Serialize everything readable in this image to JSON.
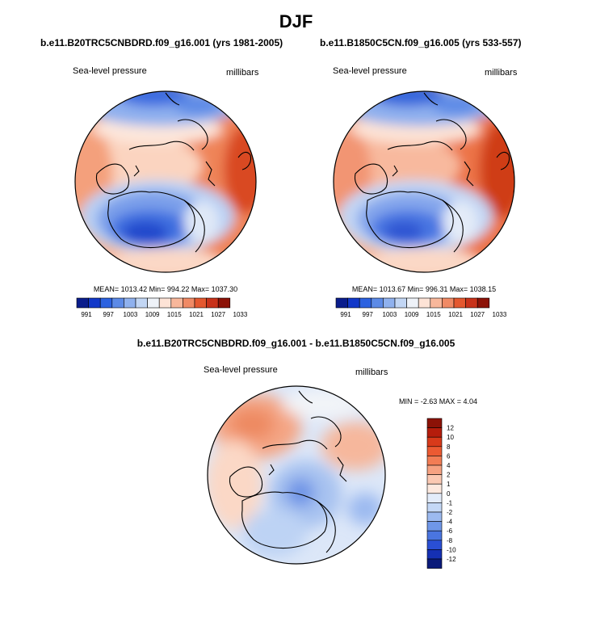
{
  "figure": {
    "title": "DJF"
  },
  "chart_data": [
    {
      "type": "heatmap",
      "projection": "north-polar-stereographic",
      "title": "b.e11.B20TRC5CNBDRD.f09_g16.001 (yrs 1981-2005)",
      "variable": "Sea-level pressure",
      "units": "millibars",
      "stats_text": "MEAN= 1013.42  Min= 994.22  Max= 1037.30",
      "mean": 1013.42,
      "min": 994.22,
      "max": 1037.3,
      "colorbar": {
        "orientation": "horizontal",
        "levels": [
          "991",
          "997",
          "1003",
          "1009",
          "1015",
          "1021",
          "1027",
          "1033"
        ],
        "colors": [
          "#0a1d8c",
          "#1238c9",
          "#2c62e0",
          "#5c8ae6",
          "#8fb1ee",
          "#c2d6f4",
          "#eef2f8",
          "#fde3d6",
          "#f8b79b",
          "#f08a65",
          "#e4582f",
          "#c8321a",
          "#8c1207"
        ]
      }
    },
    {
      "type": "heatmap",
      "projection": "north-polar-stereographic",
      "title": "b.e11.B1850C5CN.f09_g16.005 (yrs 533-557)",
      "variable": "Sea-level pressure",
      "units": "millibars",
      "stats_text": "MEAN= 1013.67  Min= 996.31  Max= 1038.15",
      "mean": 1013.67,
      "min": 996.31,
      "max": 1038.15,
      "colorbar": {
        "orientation": "horizontal",
        "levels": [
          "991",
          "997",
          "1003",
          "1009",
          "1015",
          "1021",
          "1027",
          "1033"
        ],
        "colors": [
          "#0a1d8c",
          "#1238c9",
          "#2c62e0",
          "#5c8ae6",
          "#8fb1ee",
          "#c2d6f4",
          "#eef2f8",
          "#fde3d6",
          "#f8b79b",
          "#f08a65",
          "#e4582f",
          "#c8321a",
          "#8c1207"
        ]
      }
    },
    {
      "type": "heatmap",
      "projection": "north-polar-stereographic",
      "title": "b.e11.B20TRC5CNBDRD.f09_g16.001 - b.e11.B1850C5CN.f09_g16.005",
      "variable": "Sea-level pressure",
      "units": "millibars",
      "stats_text": "MIN =  -2.63 MAX =   4.04",
      "min": -2.63,
      "max": 4.04,
      "colorbar": {
        "orientation": "vertical",
        "levels": [
          "12",
          "10",
          "8",
          "6",
          "4",
          "2",
          "1",
          "0",
          "-1",
          "-2",
          "-4",
          "-6",
          "-8",
          "-10",
          "-12"
        ],
        "colors": [
          "#8c1207",
          "#b51d0c",
          "#d83a1a",
          "#ec5a32",
          "#f27d55",
          "#f6a282",
          "#fbc9b3",
          "#fde9df",
          "#e3ecfa",
          "#c4d8f6",
          "#9cbaf0",
          "#6f97e8",
          "#4a75e0",
          "#2a4fd4",
          "#1530b3",
          "#0a1a7a"
        ]
      }
    }
  ]
}
